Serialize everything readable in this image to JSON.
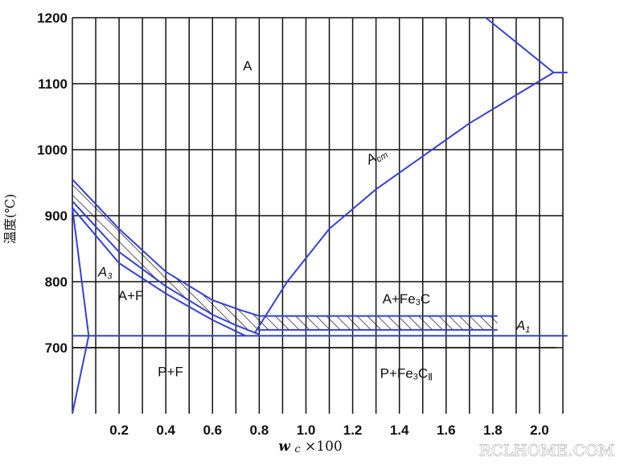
{
  "chart_data": {
    "type": "phase-diagram",
    "xlabel": "wc ×100",
    "xlabel_symbol": "w",
    "xlabel_subscript": "c",
    "xlabel_suffix": "×100",
    "ylabel": "温度(℃)",
    "xlim": [
      0,
      2.1
    ],
    "ylim": [
      600,
      1200
    ],
    "x_ticks": [
      "0.2",
      "0.4",
      "0.6",
      "0.8",
      "1.0",
      "1.2",
      "1.4",
      "1.6",
      "1.8",
      "2.0"
    ],
    "y_ticks": [
      "700",
      "800",
      "900",
      "1000",
      "1100",
      "1200"
    ],
    "regions": [
      {
        "label": "A",
        "x": 0.75,
        "y": 1120
      },
      {
        "label": "A+F",
        "x": 0.25,
        "y": 772
      },
      {
        "label": "P+F",
        "x": 0.42,
        "y": 657
      },
      {
        "label": "A+Fe3C",
        "x": 1.43,
        "y": 767
      },
      {
        "label": "P+Fe3CII",
        "x": 1.43,
        "y": 654
      }
    ],
    "curve_labels": [
      {
        "label": "Acm",
        "x": 1.31,
        "y": 985
      },
      {
        "label": "A3",
        "x": 0.14,
        "y": 808
      },
      {
        "label": "A1",
        "x": 1.93,
        "y": 727
      }
    ],
    "lines": {
      "A3_upper": [
        [
          0.0,
          955
        ],
        [
          0.2,
          880
        ],
        [
          0.4,
          815
        ],
        [
          0.6,
          772
        ],
        [
          0.72,
          757
        ],
        [
          0.8,
          748
        ]
      ],
      "A3_mid": [
        [
          0.0,
          922
        ],
        [
          0.2,
          845
        ],
        [
          0.4,
          793
        ],
        [
          0.6,
          750
        ],
        [
          0.7,
          734
        ],
        [
          0.8,
          720
        ]
      ],
      "A3_lower": [
        [
          0.0,
          912
        ],
        [
          0.2,
          828
        ],
        [
          0.4,
          782
        ],
        [
          0.6,
          742
        ],
        [
          0.74,
          718
        ]
      ],
      "Acm": [
        [
          0.78,
          722
        ],
        [
          0.92,
          800
        ],
        [
          1.1,
          880
        ],
        [
          1.3,
          940
        ],
        [
          1.5,
          990
        ],
        [
          1.7,
          1040
        ],
        [
          2.06,
          1117
        ]
      ],
      "upper_boundary": [
        [
          1.77,
          1200
        ],
        [
          2.06,
          1117
        ]
      ],
      "eutectic_line": [
        [
          2.06,
          1117
        ],
        [
          2.12,
          1117
        ]
      ],
      "A1_upper": [
        [
          0.8,
          748
        ],
        [
          1.82,
          748
        ]
      ],
      "A1_lower": [
        [
          0.8,
          727
        ],
        [
          1.82,
          727
        ]
      ],
      "A1_line": [
        [
          0.0,
          718
        ],
        [
          2.12,
          718
        ]
      ],
      "A1_black": [
        [
          0.0,
          700
        ],
        [
          2.07,
          700
        ]
      ],
      "ferrite_upper": [
        [
          0.0,
          912
        ],
        [
          0.07,
          718
        ]
      ],
      "ferrite_lower": [
        [
          0.0,
          600
        ],
        [
          0.07,
          718
        ]
      ]
    },
    "grid": true
  },
  "watermark": "RCLHOME.COM",
  "colors": {
    "curve": "#3340d8",
    "grid": "#111111",
    "hatch": "#111111"
  }
}
